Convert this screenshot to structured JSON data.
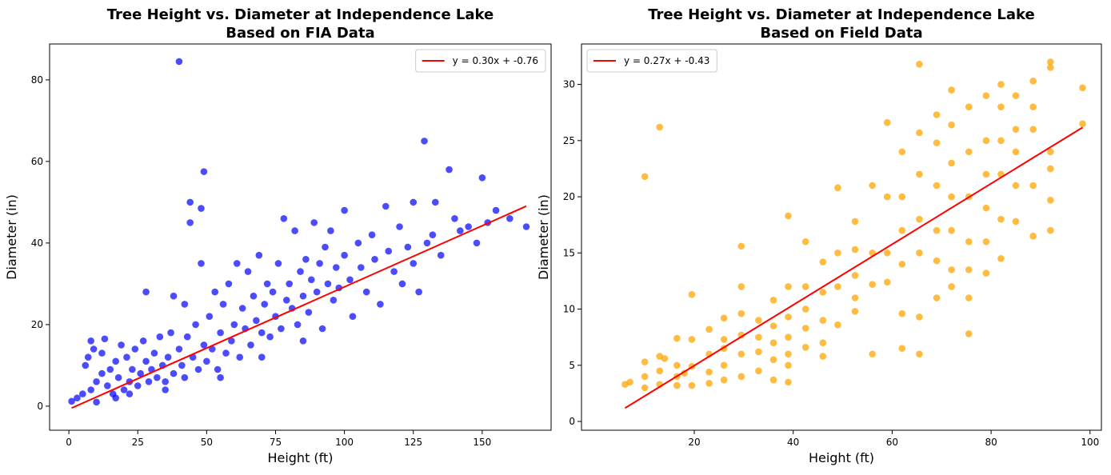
{
  "chart_data": [
    {
      "type": "scatter",
      "title": [
        "Tree Height vs. Diameter at Independence Lake",
        "Based on FIA Data"
      ],
      "xlabel": "Height (ft)",
      "ylabel": "Diameter (in)",
      "xlim": [
        -7,
        175
      ],
      "ylim": [
        -5.9,
        88.8
      ],
      "xticks": [
        0,
        25,
        50,
        75,
        100,
        125,
        150
      ],
      "yticks": [
        0,
        20,
        40,
        60,
        80
      ],
      "legend": "upper right",
      "series": [
        {
          "color": "#0000ff",
          "opacity": 0.7,
          "x": [
            1,
            3,
            5,
            6,
            7,
            8,
            8,
            9,
            10,
            10,
            12,
            12,
            13,
            14,
            15,
            16,
            17,
            18,
            19,
            20,
            21,
            22,
            23,
            24,
            25,
            26,
            27,
            28,
            28,
            29,
            30,
            31,
            32,
            33,
            34,
            35,
            36,
            37,
            38,
            38,
            40,
            40,
            41,
            42,
            42,
            43,
            44,
            44,
            45,
            46,
            47,
            48,
            48,
            49,
            49,
            50,
            51,
            52,
            53,
            54,
            55,
            56,
            57,
            58,
            59,
            60,
            61,
            62,
            63,
            64,
            65,
            66,
            67,
            68,
            69,
            70,
            71,
            72,
            73,
            74,
            75,
            76,
            77,
            78,
            79,
            80,
            81,
            82,
            83,
            84,
            85,
            86,
            87,
            88,
            89,
            90,
            91,
            92,
            93,
            94,
            95,
            96,
            97,
            98,
            100,
            100,
            102,
            103,
            105,
            106,
            108,
            110,
            111,
            113,
            115,
            116,
            118,
            120,
            121,
            123,
            125,
            125,
            127,
            129,
            130,
            132,
            133,
            135,
            138,
            140,
            142,
            145,
            148,
            150,
            152,
            155,
            160,
            166,
            17,
            22,
            35,
            55,
            70,
            85
          ],
          "values": [
            1.2,
            2,
            3,
            10,
            12,
            16,
            4,
            14,
            6,
            1,
            8,
            13,
            16.5,
            5,
            9,
            3,
            11,
            7,
            15,
            4,
            12,
            6,
            9,
            14,
            5,
            8,
            16,
            28,
            11,
            6,
            9,
            13,
            7,
            17,
            10,
            6,
            12,
            18,
            8,
            27,
            84.5,
            14,
            10,
            25,
            7,
            17,
            45,
            50,
            12,
            20,
            9,
            35,
            48.5,
            57.5,
            15,
            11,
            22,
            14,
            28,
            9,
            18,
            25,
            13,
            30,
            16,
            20,
            35,
            12,
            24,
            19,
            33,
            15,
            27,
            21,
            37,
            18,
            25,
            30,
            17,
            28,
            22,
            35,
            19,
            46,
            26,
            30,
            24,
            43,
            20,
            33,
            27,
            36,
            23,
            31,
            45,
            28,
            35,
            19,
            39,
            30,
            43,
            26,
            34,
            29,
            48,
            37,
            31,
            22,
            40,
            34,
            28,
            42,
            36,
            25,
            49,
            38,
            33,
            44,
            30,
            39,
            35,
            50,
            28,
            65,
            40,
            42,
            50,
            37,
            58,
            46,
            43,
            44,
            40,
            56,
            45,
            48,
            46,
            44,
            2,
            3,
            4,
            7,
            12,
            16
          ]
        },
        {
          "name": "y = 0.30x + -0.76",
          "color": "#ff0000",
          "mark": "line",
          "x": [
            1,
            166
          ],
          "values": [
            -0.46,
            49.04
          ]
        }
      ]
    },
    {
      "type": "scatter",
      "title": [
        "Tree Height vs. Diameter at Independence Lake",
        "Based on Field Data"
      ],
      "xlabel": "Height (ft)",
      "ylabel": "Diameter (in)",
      "xlim": [
        -2.8,
        102.3
      ],
      "ylim": [
        -0.78,
        33.6
      ],
      "xticks": [
        20,
        40,
        60,
        80,
        100
      ],
      "yticks": [
        0,
        5,
        10,
        15,
        20,
        25,
        30
      ],
      "legend": "upper left",
      "series": [
        {
          "color": "#ffa500",
          "opacity": 0.75,
          "x": [
            6,
            7,
            10,
            10,
            10,
            10,
            13,
            13,
            13,
            13,
            14,
            16.5,
            16.5,
            16.5,
            16.5,
            18,
            19.5,
            19.5,
            19.5,
            19.5,
            23,
            23,
            23,
            23,
            26,
            26,
            26,
            26,
            26,
            29.5,
            29.5,
            29.5,
            29.5,
            29.5,
            29.5,
            33,
            33,
            33,
            33,
            36,
            36,
            36,
            36,
            36,
            39,
            39,
            39,
            39,
            39,
            39,
            39,
            42.5,
            42.5,
            42.5,
            42.5,
            42.5,
            46,
            46,
            46,
            46,
            46,
            49,
            49,
            49,
            49,
            52.5,
            52.5,
            52.5,
            52.5,
            52.5,
            56,
            56,
            56,
            56,
            59,
            59,
            59,
            59,
            62,
            62,
            62,
            62,
            62,
            62,
            65.5,
            65.5,
            65.5,
            65.5,
            65.5,
            65.5,
            65.5,
            69,
            69,
            69,
            69,
            69,
            69,
            72,
            72,
            72,
            72,
            72,
            72,
            72,
            75.5,
            75.5,
            75.5,
            75.5,
            75.5,
            75.5,
            75.5,
            79,
            79,
            79,
            79,
            79,
            79,
            82,
            82,
            82,
            82,
            82,
            82,
            85,
            85,
            85,
            85,
            85,
            88.5,
            88.5,
            88.5,
            88.5,
            88.5,
            92,
            92,
            92,
            92,
            92,
            92,
            98.5,
            98.5
          ],
          "values": [
            3.3,
            3.5,
            21.8,
            5.3,
            4,
            3,
            26.2,
            5.8,
            4.5,
            3.3,
            5.6,
            7.4,
            5,
            4,
            3.2,
            4.3,
            11.3,
            7.3,
            4.9,
            3.2,
            8.2,
            6,
            4.4,
            3.4,
            9.2,
            7.3,
            6.5,
            5,
            3.7,
            15.6,
            12,
            9.6,
            7.7,
            6,
            4,
            9,
            7.5,
            6.2,
            4.5,
            10.8,
            8.5,
            7,
            5.5,
            3.7,
            18.3,
            12,
            9.3,
            7.5,
            6,
            5,
            3.5,
            16,
            12,
            10,
            8.3,
            6.6,
            14.2,
            11.5,
            9,
            7,
            5.8,
            20.8,
            15,
            12,
            8.6,
            17.8,
            15.3,
            13,
            11,
            9.8,
            21,
            15,
            12.2,
            6,
            26.6,
            20,
            15,
            12.4,
            24,
            20,
            17,
            14,
            9.6,
            6.5,
            31.8,
            25.7,
            22,
            18,
            15,
            9.3,
            6,
            27.3,
            24.8,
            21,
            17,
            14.3,
            11,
            29.5,
            26.4,
            23,
            20,
            17,
            13.5,
            12,
            28,
            24,
            20,
            16,
            13.5,
            11,
            7.8,
            29,
            25,
            22,
            19,
            16,
            13.2,
            30,
            28,
            25,
            22,
            18,
            14.5,
            29,
            26,
            24,
            21,
            17.8,
            30.3,
            28,
            26,
            21,
            16.5,
            32,
            31.5,
            24,
            22.5,
            19.7,
            17,
            29.7,
            26.5
          ]
        },
        {
          "name": "y = 0.27x + -0.43",
          "color": "#ff0000",
          "mark": "line",
          "x": [
            6,
            98.5
          ],
          "values": [
            1.19,
            26.17
          ]
        }
      ]
    }
  ]
}
